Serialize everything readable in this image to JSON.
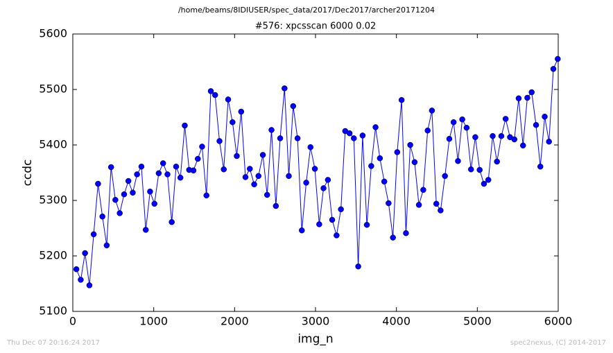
{
  "chart_data": {
    "type": "line",
    "suptitle": "/home/beams/8IDIUSER/spec_data/2017/Dec2017/archer20171204",
    "title": "#576: xpcsscan 6000 0.02",
    "x_label": "img_n",
    "y_label": "ccdc",
    "footer_left": "Thu Dec 07 20:16:24 2017",
    "footer_right": "spec2nexus, (C) 2014-2017",
    "color": "#0000ff",
    "x": [
      44,
      98,
      151,
      205,
      258,
      312,
      366,
      419,
      473,
      526,
      580,
      634,
      687,
      741,
      794,
      848,
      902,
      955,
      1009,
      1062,
      1116,
      1170,
      1223,
      1277,
      1330,
      1384,
      1438,
      1491,
      1545,
      1598,
      1652,
      1706,
      1759,
      1813,
      1866,
      1920,
      1974,
      2027,
      2081,
      2134,
      2188,
      2242,
      2295,
      2349,
      2402,
      2456,
      2510,
      2563,
      2617,
      2670,
      2724,
      2778,
      2831,
      2885,
      2938,
      2992,
      3046,
      3099,
      3153,
      3206,
      3260,
      3314,
      3367,
      3421,
      3474,
      3528,
      3582,
      3635,
      3689,
      3742,
      3796,
      3850,
      3903,
      3957,
      4010,
      4064,
      4118,
      4171,
      4225,
      4278,
      4332,
      4386,
      4439,
      4493,
      4546,
      4600,
      4654,
      4707,
      4761,
      4814,
      4868,
      4922,
      4975,
      5029,
      5082,
      5136,
      5190,
      5243,
      5297,
      5350,
      5404,
      5458,
      5511,
      5565,
      5618,
      5672,
      5726,
      5779,
      5833,
      5886,
      5940,
      5994
    ],
    "values": [
      5176,
      5157,
      5205,
      5147,
      5239,
      5330,
      5271,
      5219,
      5360,
      5301,
      5277,
      5311,
      5335,
      5314,
      5347,
      5361,
      5247,
      5316,
      5294,
      5349,
      5367,
      5347,
      5261,
      5361,
      5341,
      5435,
      5355,
      5354,
      5375,
      5397,
      5309,
      5497,
      5490,
      5407,
      5356,
      5482,
      5441,
      5380,
      5460,
      5342,
      5357,
      5329,
      5344,
      5382,
      5310,
      5427,
      5290,
      5412,
      5502,
      5344,
      5470,
      5412,
      5246,
      5332,
      5396,
      5357,
      5257,
      5322,
      5337,
      5265,
      5237,
      5284,
      5425,
      5421,
      5412,
      5181,
      5417,
      5256,
      5362,
      5432,
      5376,
      5334,
      5295,
      5233,
      5387,
      5481,
      5241,
      5400,
      5369,
      5292,
      5319,
      5426,
      5462,
      5294,
      5282,
      5344,
      5411,
      5441,
      5371,
      5446,
      5431,
      5356,
      5414,
      5355,
      5330,
      5337,
      5416,
      5370,
      5416,
      5447,
      5414,
      5410,
      5484,
      5399,
      5485,
      5495,
      5436,
      5361,
      5451,
      5406,
      5537,
      5555
    ],
    "xlim": [
      0,
      6000
    ],
    "xticks": [
      0,
      1000,
      2000,
      3000,
      4000,
      5000,
      6000
    ],
    "ylim": [
      5100,
      5600
    ],
    "yticks": [
      5100,
      5200,
      5300,
      5400,
      5500,
      5600
    ]
  }
}
